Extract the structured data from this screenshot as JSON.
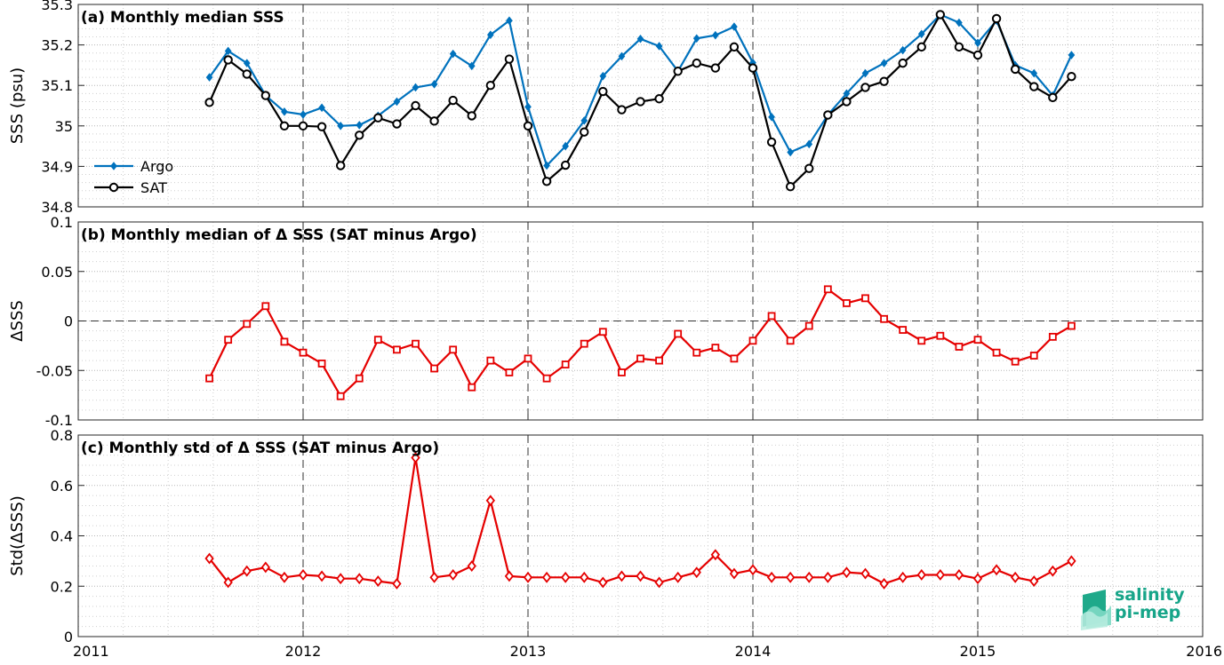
{
  "colors": {
    "argo": "#0072bd",
    "sat": "#000000",
    "delta": "#e50000",
    "logo": "#17a589"
  },
  "x_axis": {
    "ticks": [
      2011,
      2012,
      2013,
      2014,
      2015,
      2016
    ],
    "tick_labels": [
      "2011",
      "2012",
      "2013",
      "2014",
      "2015",
      "2016"
    ],
    "range": [
      2011,
      2016
    ]
  },
  "chart_data": [
    {
      "type": "line",
      "title": "(a) Monthly median SSS",
      "ylabel": "SSS (psu)",
      "ylim": [
        34.8,
        35.3
      ],
      "yticks": [
        34.8,
        34.9,
        35,
        35.1,
        35.2,
        35.3
      ],
      "ytick_labels": [
        "34.8",
        "34.9",
        "35",
        "35.1",
        "35.2",
        "35.3"
      ],
      "grid": true,
      "legend_position": "bottom-left",
      "x": [
        "2011-08",
        "2011-09",
        "2011-10",
        "2011-11",
        "2011-12",
        "2012-01",
        "2012-02",
        "2012-03",
        "2012-04",
        "2012-05",
        "2012-06",
        "2012-07",
        "2012-08",
        "2012-09",
        "2012-10",
        "2012-11",
        "2012-12",
        "2013-01",
        "2013-02",
        "2013-03",
        "2013-04",
        "2013-05",
        "2013-06",
        "2013-07",
        "2013-08",
        "2013-09",
        "2013-10",
        "2013-11",
        "2013-12",
        "2014-01",
        "2014-02",
        "2014-03",
        "2014-04",
        "2014-05",
        "2014-06",
        "2014-07",
        "2014-08",
        "2014-09",
        "2014-10",
        "2014-11",
        "2014-12",
        "2015-01",
        "2015-02",
        "2015-03",
        "2015-04",
        "2015-05",
        "2015-06"
      ],
      "series": [
        {
          "name": "Argo",
          "color": "#0072bd",
          "marker": "diamond",
          "values": [
            35.12,
            35.185,
            35.155,
            35.075,
            35.035,
            35.028,
            35.045,
            35.0,
            35.002,
            35.025,
            35.06,
            35.095,
            35.103,
            35.178,
            35.148,
            35.225,
            35.26,
            35.047,
            34.902,
            34.95,
            35.013,
            35.123,
            35.172,
            35.215,
            35.197,
            35.135,
            35.216,
            35.224,
            35.245,
            35.156,
            35.022,
            34.935,
            34.955,
            35.027,
            35.08,
            35.13,
            35.155,
            35.187,
            35.227,
            35.275,
            35.255,
            35.205,
            35.26,
            35.15,
            35.13,
            35.075,
            35.175
          ]
        },
        {
          "name": "SAT",
          "color": "#000000",
          "marker": "circle",
          "values": [
            35.058,
            35.163,
            35.128,
            35.075,
            35.0,
            35.0,
            34.998,
            34.902,
            34.977,
            35.02,
            35.005,
            35.05,
            35.012,
            35.063,
            35.025,
            35.1,
            35.165,
            35.0,
            34.863,
            34.903,
            34.985,
            35.085,
            35.04,
            35.06,
            35.067,
            35.135,
            35.155,
            35.143,
            35.195,
            35.143,
            34.96,
            34.85,
            34.895,
            35.027,
            35.06,
            35.095,
            35.11,
            35.155,
            35.195,
            35.275,
            35.195,
            35.175,
            35.265,
            35.14,
            35.097,
            35.07,
            35.122
          ]
        }
      ]
    },
    {
      "type": "line",
      "title": "(b) Monthly median of Δ SSS (SAT minus Argo)",
      "ylabel": "ΔSSS",
      "ylim": [
        -0.1,
        0.1
      ],
      "yticks": [
        -0.1,
        -0.05,
        0,
        0.05,
        0.1
      ],
      "ytick_labels": [
        "-0.1",
        "-0.05",
        "0",
        "0.05",
        "0.1"
      ],
      "grid": true,
      "reference_line": 0,
      "x": [
        "2011-08",
        "2011-09",
        "2011-10",
        "2011-11",
        "2011-12",
        "2012-01",
        "2012-02",
        "2012-03",
        "2012-04",
        "2012-05",
        "2012-06",
        "2012-07",
        "2012-08",
        "2012-09",
        "2012-10",
        "2012-11",
        "2012-12",
        "2013-01",
        "2013-02",
        "2013-03",
        "2013-04",
        "2013-05",
        "2013-06",
        "2013-07",
        "2013-08",
        "2013-09",
        "2013-10",
        "2013-11",
        "2013-12",
        "2014-01",
        "2014-02",
        "2014-03",
        "2014-04",
        "2014-05",
        "2014-06",
        "2014-07",
        "2014-08",
        "2014-09",
        "2014-10",
        "2014-11",
        "2014-12",
        "2015-01",
        "2015-02",
        "2015-03",
        "2015-04",
        "2015-05",
        "2015-06"
      ],
      "series": [
        {
          "color": "#e50000",
          "marker": "square",
          "values": [
            -0.058,
            -0.019,
            -0.003,
            0.015,
            -0.021,
            -0.032,
            -0.043,
            -0.076,
            -0.058,
            -0.019,
            -0.029,
            -0.023,
            -0.048,
            -0.029,
            -0.067,
            -0.04,
            -0.052,
            -0.038,
            -0.058,
            -0.044,
            -0.023,
            -0.011,
            -0.052,
            -0.038,
            -0.04,
            -0.013,
            -0.032,
            -0.027,
            -0.038,
            -0.02,
            0.005,
            -0.02,
            -0.005,
            0.032,
            0.018,
            0.023,
            0.002,
            -0.009,
            -0.02,
            -0.015,
            -0.026,
            -0.019,
            -0.032,
            -0.041,
            -0.035,
            -0.016,
            -0.005
          ]
        }
      ]
    },
    {
      "type": "line",
      "title": "(c) Monthly std of Δ SSS (SAT minus Argo)",
      "ylabel": "Std(ΔSSS)",
      "ylim": [
        0,
        0.8
      ],
      "yticks": [
        0,
        0.2,
        0.4,
        0.6,
        0.8
      ],
      "ytick_labels": [
        "0",
        "0.2",
        "0.4",
        "0.6",
        "0.8"
      ],
      "grid": true,
      "x": [
        "2011-08",
        "2011-09",
        "2011-10",
        "2011-11",
        "2011-12",
        "2012-01",
        "2012-02",
        "2012-03",
        "2012-04",
        "2012-05",
        "2012-06",
        "2012-07",
        "2012-08",
        "2012-09",
        "2012-10",
        "2012-11",
        "2012-12",
        "2013-01",
        "2013-02",
        "2013-03",
        "2013-04",
        "2013-05",
        "2013-06",
        "2013-07",
        "2013-08",
        "2013-09",
        "2013-10",
        "2013-11",
        "2013-12",
        "2014-01",
        "2014-02",
        "2014-03",
        "2014-04",
        "2014-05",
        "2014-06",
        "2014-07",
        "2014-08",
        "2014-09",
        "2014-10",
        "2014-11",
        "2014-12",
        "2015-01",
        "2015-02",
        "2015-03",
        "2015-04",
        "2015-05",
        "2015-06"
      ],
      "series": [
        {
          "color": "#e50000",
          "marker": "diamond",
          "values": [
            0.31,
            0.215,
            0.26,
            0.275,
            0.235,
            0.245,
            0.24,
            0.23,
            0.23,
            0.22,
            0.21,
            0.71,
            0.235,
            0.245,
            0.28,
            0.54,
            0.24,
            0.235,
            0.235,
            0.235,
            0.235,
            0.215,
            0.24,
            0.24,
            0.215,
            0.235,
            0.255,
            0.325,
            0.25,
            0.265,
            0.235,
            0.235,
            0.235,
            0.235,
            0.255,
            0.25,
            0.21,
            0.235,
            0.245,
            0.245,
            0.245,
            0.23,
            0.265,
            0.235,
            0.22,
            0.26,
            0.3
          ]
        }
      ]
    }
  ],
  "logo": {
    "line1": "salinity",
    "line2": "pi-mep"
  }
}
